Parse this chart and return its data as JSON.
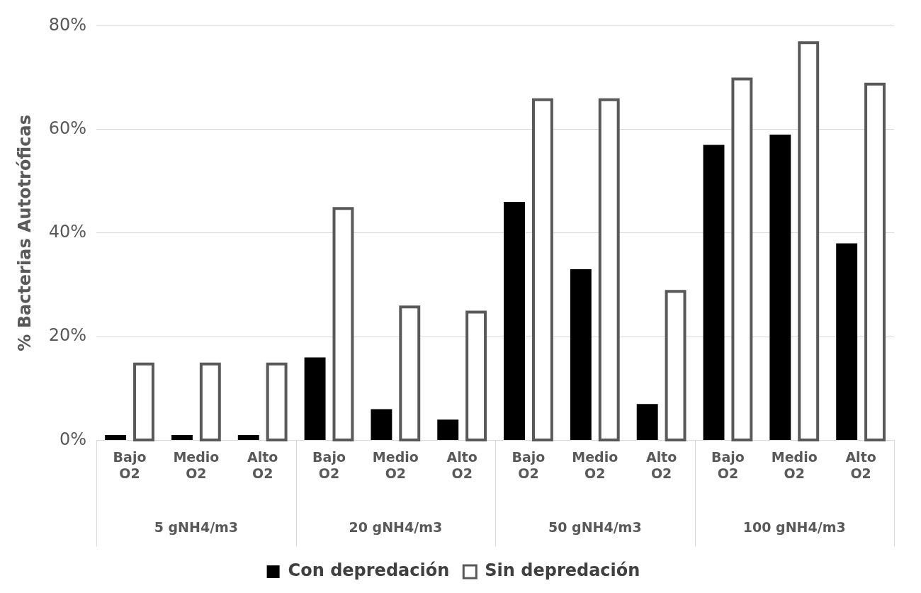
{
  "chart_data": {
    "type": "bar",
    "ylabel": "% Bacterias Autotróficas",
    "categories": [
      "Bajo O2",
      "Medio O2",
      "Alto O2",
      "Bajo O2",
      "Medio O2",
      "Alto O2",
      "Bajo O2",
      "Medio O2",
      "Alto O2",
      "Bajo O2",
      "Medio O2",
      "Alto O2"
    ],
    "series": [
      {
        "name": "Con depredación",
        "color": "#000000",
        "values": [
          1,
          1,
          1,
          16,
          6,
          4,
          46,
          33,
          7,
          57,
          59,
          38
        ]
      },
      {
        "name": "Sin depredación",
        "color": "#595959",
        "values": [
          15,
          15,
          15,
          45,
          26,
          25,
          66,
          66,
          29,
          70,
          77,
          69
        ]
      }
    ],
    "annotations": [
      "5 gNH4/m3",
      "20 gNH4/m3",
      "50 gNH4/m3",
      "100 gNH4/m3"
    ],
    "ylim": [
      0,
      80
    ],
    "yticks": [
      {
        "value": 0,
        "label": "0%"
      },
      {
        "value": 20,
        "label": "20%"
      },
      {
        "value": 40,
        "label": "40%"
      },
      {
        "value": 60,
        "label": "60%"
      },
      {
        "value": 80,
        "label": "80%"
      }
    ],
    "grid": "y",
    "legend": "bottom"
  }
}
